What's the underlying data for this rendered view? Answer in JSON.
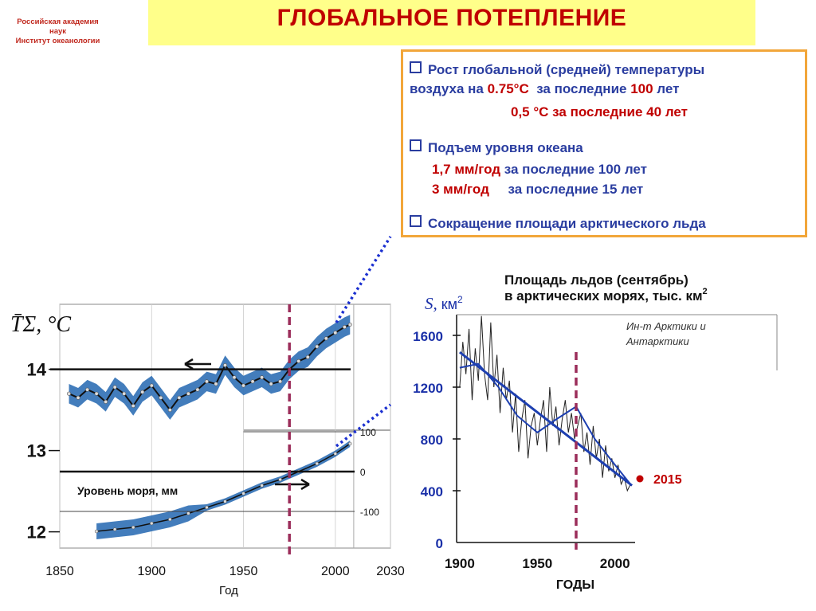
{
  "header": {
    "logo_lines": [
      "Российская академия",
      "наук",
      "Институт океанологии"
    ],
    "title": "ГЛОБАЛЬНОЕ ПОТЕПЛЕНИЕ"
  },
  "facts": [
    {
      "kind": "bullet",
      "parts": [
        {
          "t": "Рост глобальной (средней) температуры",
          "c": "blue"
        }
      ]
    },
    {
      "kind": "text",
      "parts": [
        {
          "t": "воздуха на ",
          "c": "blue"
        },
        {
          "t": "0.75°C",
          "c": "red"
        },
        {
          "t": "  за последние ",
          "c": "blue"
        },
        {
          "t": "100",
          "c": "red"
        },
        {
          "t": " лет",
          "c": "blue"
        }
      ]
    },
    {
      "kind": "text",
      "parts": [
        {
          "t": "0,5 °C",
          "c": "red"
        },
        {
          "t": " за последние ",
          "c": "blue"
        },
        {
          "t": "40",
          "c": "red"
        },
        {
          "t": " лет",
          "c": "blue"
        }
      ]
    },
    {
      "kind": "bullet",
      "parts": [
        {
          "t": "Подъем уровня океана",
          "c": "blue"
        }
      ]
    },
    {
      "kind": "text",
      "parts": [
        {
          "t": "1,7 мм/год",
          "c": "red"
        },
        {
          "t": " за последние 100 лет",
          "c": "blue"
        }
      ]
    },
    {
      "kind": "text",
      "parts": [
        {
          "t": "3 мм/год",
          "c": "red"
        },
        {
          "t": "     за последние 15 лет",
          "c": "blue"
        }
      ]
    },
    {
      "kind": "bullet",
      "parts": [
        {
          "t": "Сокращение площади арктического льда",
          "c": "blue"
        }
      ]
    }
  ],
  "colors": {
    "title": "#c00000",
    "title_bg": "#ffff8a",
    "box_border": "#f2a63a",
    "text_blue": "#2a3da0",
    "text_red": "#c00000",
    "band": "#2f6fb5",
    "marker": "#9b2d5a",
    "ice_axis": "#1a30a8",
    "dot_2015": "#c00000"
  },
  "chart_data": [
    {
      "type": "line",
      "ylabel": "T̄Σ, °C",
      "xlabel": "Год",
      "xlim": [
        1850,
        2030
      ],
      "ylim": [
        11.8,
        14.8
      ],
      "x_ticks": [
        1850,
        1900,
        1950,
        2000,
        2030
      ],
      "y_ticks": [
        12,
        13,
        14
      ],
      "sealevel_ticks": [
        100,
        0,
        -100
      ],
      "annotation": "Уровень моря, мм",
      "reference_year": 1975,
      "series": [
        {
          "x": [
            1855,
            1860,
            1865,
            1870,
            1875,
            1880,
            1885,
            1890,
            1895,
            1900,
            1905,
            1910,
            1915,
            1920,
            1925,
            1930,
            1935,
            1940,
            1945,
            1950,
            1955,
            1960,
            1965,
            1970,
            1975,
            1980,
            1985,
            1990,
            1995,
            2000,
            2005,
            2008
          ],
          "values": [
            13.7,
            13.65,
            13.75,
            13.7,
            13.6,
            13.78,
            13.7,
            13.55,
            13.72,
            13.8,
            13.65,
            13.5,
            13.65,
            13.7,
            13.75,
            13.85,
            13.82,
            14.05,
            13.9,
            13.8,
            13.85,
            13.9,
            13.82,
            13.85,
            14.0,
            14.1,
            14.15,
            14.28,
            14.38,
            14.45,
            14.52,
            14.55
          ]
        },
        {
          "x": [
            1870,
            1880,
            1890,
            1900,
            1910,
            1920,
            1930,
            1940,
            1950,
            1960,
            1970,
            1980,
            1990,
            2000,
            2008
          ],
          "values": [
            -150,
            -145,
            -140,
            -130,
            -120,
            -105,
            -90,
            -75,
            -55,
            -35,
            -20,
            0,
            20,
            45,
            70
          ]
        }
      ]
    },
    {
      "type": "line",
      "title": "Площадь льдов (сентябрь) в арктических морях, тыс. км2",
      "ylabel": "S, км2",
      "xlabel": "ГОДЫ",
      "source": "Ин-т Арктики и Антарктики",
      "xlim": [
        1898,
        2013
      ],
      "ylim": [
        0,
        1760
      ],
      "x_ticks": [
        1900,
        1950,
        2000
      ],
      "y_ticks": [
        0,
        400,
        800,
        1200,
        1600
      ],
      "reference_year": 1975,
      "highlight": {
        "label": "2015",
        "year": 2015,
        "value": 450
      },
      "series": [
        {
          "x": [
            1900,
            1902,
            1904,
            1906,
            1908,
            1910,
            1912,
            1914,
            1916,
            1918,
            1920,
            1922,
            1924,
            1926,
            1928,
            1930,
            1932,
            1934,
            1936,
            1938,
            1940,
            1942,
            1944,
            1946,
            1948,
            1950,
            1952,
            1954,
            1956,
            1958,
            1960,
            1962,
            1964,
            1966,
            1968,
            1970,
            1972,
            1974,
            1976,
            1978,
            1980,
            1982,
            1984,
            1986,
            1988,
            1990,
            1992,
            1994,
            1996,
            1998,
            2000,
            2002,
            2004,
            2006,
            2008,
            2010
          ],
          "values": [
            1200,
            1550,
            1300,
            1650,
            1100,
            1500,
            1250,
            1750,
            1300,
            1100,
            1700,
            1200,
            1450,
            1000,
            1350,
            1100,
            1250,
            850,
            1150,
            700,
            950,
            1100,
            650,
            900,
            1000,
            750,
            950,
            1100,
            700,
            1200,
            900,
            1050,
            750,
            950,
            1100,
            850,
            1000,
            800,
            900,
            1000,
            700,
            850,
            600,
            900,
            650,
            800,
            500,
            750,
            550,
            650,
            500,
            600,
            450,
            500,
            400,
            450
          ]
        },
        {
          "x": [
            1900,
            1912,
            1925,
            1937,
            1950,
            1962,
            1975,
            1987,
            2000,
            2010
          ],
          "values": [
            1350,
            1380,
            1200,
            980,
            850,
            950,
            1050,
            800,
            600,
            450
          ]
        },
        {
          "x": [
            1900,
            2011
          ],
          "values": [
            1470,
            440
          ]
        }
      ]
    }
  ]
}
